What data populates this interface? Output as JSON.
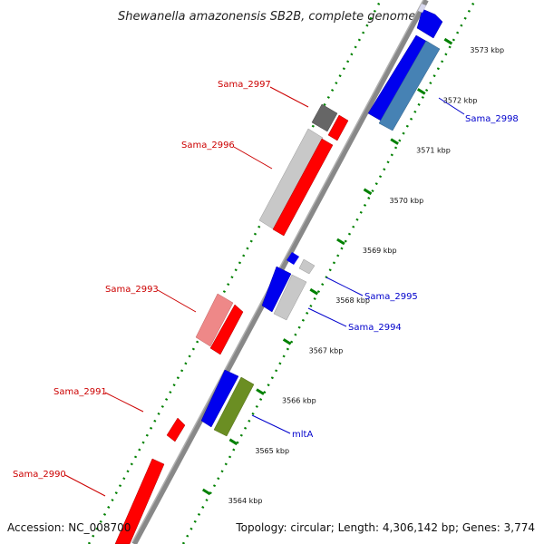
{
  "title": "Shewanella amazonensis SB2B, complete genome",
  "footer": {
    "accession": "Accession: NC_008700",
    "topology": "Topology: circular; Length: 4,306,142 bp; Genes: 3,774"
  },
  "ticks": [
    "3564 kbp",
    "3565 kbp",
    "3566 kbp",
    "3567 kbp",
    "3568 kbp",
    "3569 kbp",
    "3570 kbp",
    "3571 kbp",
    "3572 kbp",
    "3573 kbp"
  ],
  "labels": {
    "sama_2997": "Sama_2997",
    "sama_2996": "Sama_2996",
    "sama_2993": "Sama_2993",
    "sama_2991": "Sama_2991",
    "sama_2990": "Sama_2990",
    "sama_2998": "Sama_2998",
    "sama_2995": "Sama_2995",
    "sama_2994": "Sama_2994",
    "mlta": "mltA"
  },
  "colors": {
    "forward_red": "#ff0000",
    "forward_light_red": "#ee8888",
    "forward_grey": "#c8c8c8",
    "forward_dark_grey": "#666666",
    "reverse_blue": "#0000ee",
    "reverse_steel": "#4682b4",
    "reverse_olive": "#6b8e23",
    "backbone": "#888888",
    "tick_green": "#008000",
    "label_red": "#cc0000",
    "label_blue": "#0000cc"
  }
}
